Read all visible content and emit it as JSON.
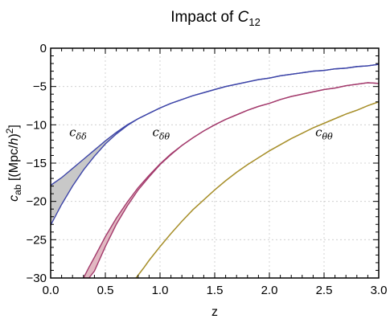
{
  "chart_data": {
    "type": "area",
    "title": {
      "main": "Impact of ",
      "symbol": "C",
      "subscript": "12"
    },
    "xlabel": "z",
    "ylabel": {
      "symbol": "c",
      "subscript": "ab",
      "unit_open": " [(Mpc/",
      "unit_h": "h",
      "unit_close": ")",
      "unit_exp": "2",
      "unit_end": "]"
    },
    "xlim": [
      0,
      3
    ],
    "ylim": [
      -30,
      0
    ],
    "xticks": [
      0.0,
      0.5,
      1.0,
      1.5,
      2.0,
      2.5,
      3.0
    ],
    "xtick_labels": [
      "0.0",
      "0.5",
      "1.0",
      "1.5",
      "2.0",
      "2.5",
      "3.0"
    ],
    "yticks": [
      0,
      -5,
      -10,
      -15,
      -20,
      -25,
      -30
    ],
    "ytick_labels": [
      "0",
      "−5",
      "−10",
      "−15",
      "−20",
      "−25",
      "−30"
    ],
    "grid": true,
    "series": [
      {
        "name": "c_δδ",
        "label": {
          "main": "c",
          "sub": "δδ"
        },
        "fill_color": "#c8c8c8",
        "line_color": "#3d45a8",
        "x": [
          0.0,
          0.1,
          0.2,
          0.3,
          0.4,
          0.5,
          0.6,
          0.7,
          0.8,
          0.9,
          1.0,
          1.1,
          1.2,
          1.3,
          1.4,
          1.5,
          1.6,
          1.7,
          1.8,
          1.9,
          2.0,
          2.1,
          2.2,
          2.3,
          2.4,
          2.5,
          2.6,
          2.7,
          2.8,
          2.9,
          3.0
        ],
        "upper": [
          -17.9,
          -16.9,
          -15.7,
          -14.5,
          -13.3,
          -12.1,
          -11.0,
          -10.0,
          -9.2,
          -8.5,
          -7.8,
          -7.2,
          -6.7,
          -6.2,
          -5.8,
          -5.4,
          -5.0,
          -4.7,
          -4.4,
          -4.1,
          -3.9,
          -3.6,
          -3.4,
          -3.2,
          -3.0,
          -2.9,
          -2.7,
          -2.6,
          -2.4,
          -2.3,
          -2.1
        ],
        "lower": [
          -23.1,
          -20.4,
          -18.0,
          -15.9,
          -14.1,
          -12.5,
          -11.2,
          -10.1,
          -9.2,
          -8.5,
          -7.8,
          -7.2,
          -6.7,
          -6.2,
          -5.8,
          -5.4,
          -5.0,
          -4.7,
          -4.4,
          -4.1,
          -3.9,
          -3.6,
          -3.4,
          -3.2,
          -3.0,
          -2.9,
          -2.7,
          -2.6,
          -2.4,
          -2.3,
          -2.1
        ]
      },
      {
        "name": "c_δθ",
        "label": {
          "main": "c",
          "sub": "δθ"
        },
        "fill_color": "#e2b8c2",
        "line_color": "#a33a6c",
        "x": [
          0.3,
          0.35,
          0.4,
          0.5,
          0.6,
          0.7,
          0.8,
          0.9,
          1.0,
          1.1,
          1.2,
          1.3,
          1.4,
          1.5,
          1.6,
          1.7,
          1.8,
          1.9,
          2.0,
          2.1,
          2.2,
          2.3,
          2.4,
          2.5,
          2.6,
          2.7,
          2.8,
          2.9,
          3.0
        ],
        "upper": [
          -30.0,
          -28.6,
          -27.3,
          -24.6,
          -22.2,
          -20.1,
          -18.2,
          -16.6,
          -15.1,
          -13.8,
          -12.7,
          -11.7,
          -10.8,
          -10.0,
          -9.3,
          -8.7,
          -8.1,
          -7.6,
          -7.2,
          -6.7,
          -6.3,
          -6.0,
          -5.7,
          -5.4,
          -5.2,
          -4.9,
          -4.7,
          -4.5,
          -4.6
        ],
        "lower": [
          -30.0,
          -30.0,
          -29.1,
          -25.9,
          -23.0,
          -20.6,
          -18.5,
          -16.8,
          -15.2,
          -13.9,
          -12.7,
          -11.7,
          -10.8,
          -10.0,
          -9.3,
          -8.7,
          -8.1,
          -7.6,
          -7.2,
          -6.7,
          -6.3,
          -6.0,
          -5.7,
          -5.4,
          -5.2,
          -4.9,
          -4.7,
          -4.5,
          -4.6
        ]
      },
      {
        "name": "c_θθ",
        "label": {
          "main": "c",
          "sub": "θθ"
        },
        "fill_color": "#e8dcb0",
        "line_color": "#a8902c",
        "x": [
          0.78,
          0.85,
          0.9,
          1.0,
          1.1,
          1.2,
          1.3,
          1.4,
          1.5,
          1.6,
          1.7,
          1.8,
          1.9,
          2.0,
          2.1,
          2.2,
          2.3,
          2.4,
          2.5,
          2.6,
          2.7,
          2.8,
          2.9,
          3.0
        ],
        "upper": [
          -30.0,
          -28.7,
          -27.7,
          -25.9,
          -24.2,
          -22.6,
          -21.1,
          -19.8,
          -18.5,
          -17.3,
          -16.2,
          -15.2,
          -14.3,
          -13.4,
          -12.6,
          -11.8,
          -11.1,
          -10.4,
          -9.8,
          -9.2,
          -8.6,
          -8.1,
          -7.5,
          -7.0
        ],
        "lower": [
          -30.0,
          -28.7,
          -27.7,
          -25.9,
          -24.2,
          -22.6,
          -21.1,
          -19.8,
          -18.5,
          -17.3,
          -16.2,
          -15.2,
          -14.3,
          -13.4,
          -12.6,
          -11.8,
          -11.1,
          -10.4,
          -9.8,
          -9.2,
          -8.6,
          -8.1,
          -7.5,
          -7.0
        ]
      }
    ]
  }
}
